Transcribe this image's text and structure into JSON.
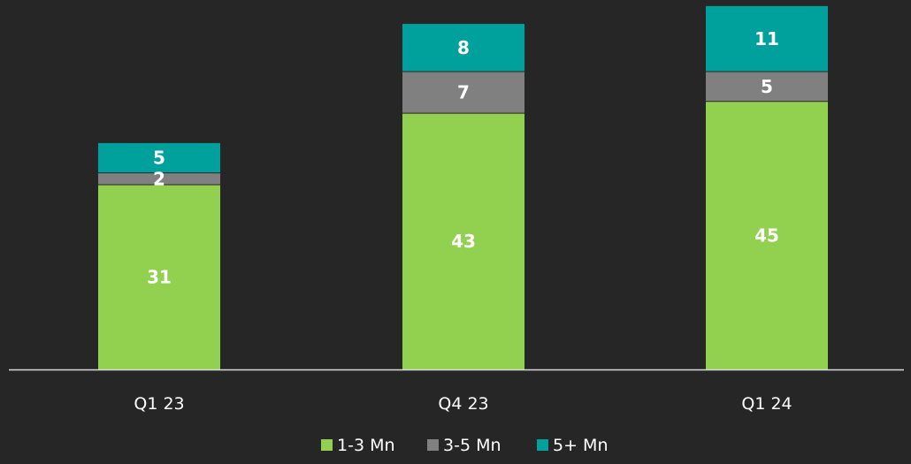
{
  "chart_data": {
    "type": "bar",
    "stacked": true,
    "title": "",
    "xlabel": "",
    "ylabel": "",
    "categories": [
      "Q1 23",
      "Q4 23",
      "Q1 24"
    ],
    "series": [
      {
        "name": "1-3 Mn",
        "values": [
          31,
          43,
          45
        ],
        "color": "#92d050"
      },
      {
        "name": "3-5 Mn",
        "values": [
          2,
          7,
          5
        ],
        "color": "#808080"
      },
      {
        "name": "5+ Mn",
        "values": [
          5,
          8,
          11
        ],
        "color": "#00a19c"
      }
    ],
    "ylim": [
      0,
      61
    ],
    "grid": false,
    "axis_line_color": "#d9d9d9",
    "background": "#262626",
    "legend_position": "bottom-center"
  }
}
